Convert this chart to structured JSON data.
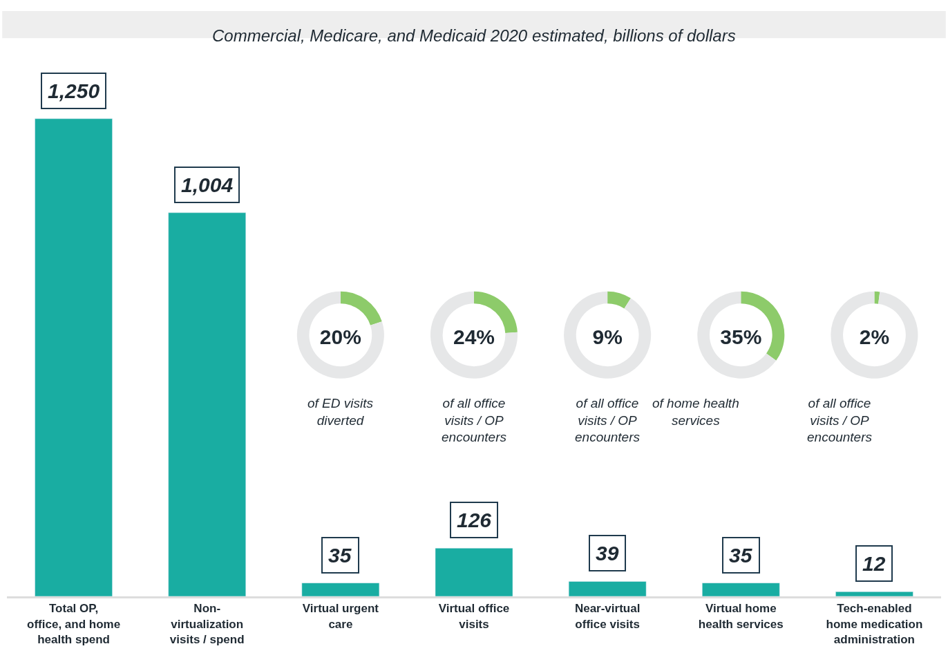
{
  "chart_data": [
    {
      "type": "bar",
      "title": "Commercial, Medicare, and Medicaid 2020 estimated, billions of dollars",
      "categories": [
        "Total OP, office, and home health spend",
        "Non-virtualization visits / spend",
        "Virtual urgent care",
        "Virtual office visits",
        "Near-virtual office visits",
        "Virtual home health services",
        "Tech-enabled home medication administration"
      ],
      "values": [
        1250,
        1004,
        35,
        126,
        39,
        35,
        12
      ],
      "color": "#19ada2",
      "value_labels": [
        "1,250",
        "1,004",
        "35",
        "126",
        "39",
        "35",
        "12"
      ]
    },
    {
      "type": "donut",
      "categories": [
        null,
        null
      ],
      "values": [
        20,
        80
      ],
      "colors": [
        "#8dcb6a",
        "#e6e7e8"
      ],
      "title": "20%",
      "subtitle": "of ED visits diverted"
    },
    {
      "type": "donut",
      "categories": [
        null,
        null
      ],
      "values": [
        24,
        76
      ],
      "colors": [
        "#8dcb6a",
        "#e6e7e8"
      ],
      "title": "24%",
      "subtitle": "of all office visits / OP encounters"
    },
    {
      "type": "donut",
      "categories": [
        null,
        null
      ],
      "values": [
        9,
        91
      ],
      "colors": [
        "#8dcb6a",
        "#e6e7e8"
      ],
      "title": "9%",
      "subtitle": "of all office visits / OP encounters"
    },
    {
      "type": "donut",
      "categories": [
        null,
        null
      ],
      "values": [
        35,
        65
      ],
      "colors": [
        "#8dcb6a",
        "#e6e7e8"
      ],
      "title": "35%",
      "subtitle": "of home health services"
    },
    {
      "type": "donut",
      "categories": [
        null,
        null
      ],
      "values": [
        2,
        98
      ],
      "colors": [
        "#8dcb6a",
        "#e6e7e8"
      ],
      "title": "2%",
      "subtitle": "of all office visits / OP encounters"
    }
  ]
}
